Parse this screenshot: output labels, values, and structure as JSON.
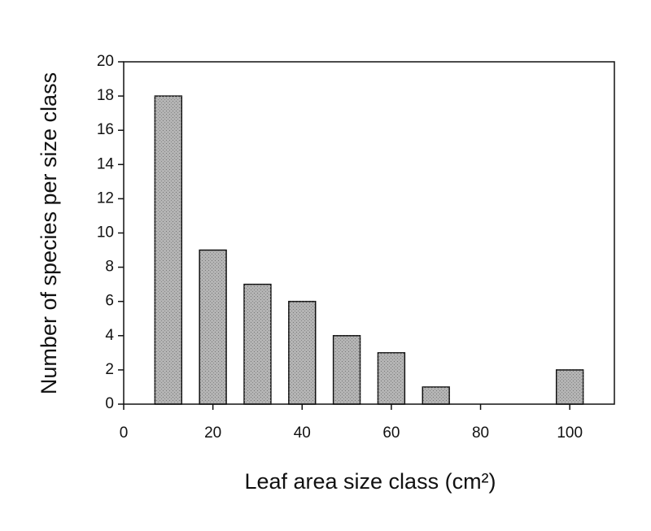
{
  "chart_data": {
    "type": "bar",
    "x_label": "Leaf area size class (cm²)",
    "y_label": "Number of species per size class",
    "x": [
      10,
      20,
      30,
      40,
      50,
      60,
      70,
      100
    ],
    "values": [
      18,
      9,
      7,
      6,
      4,
      3,
      1,
      2
    ],
    "color": "#b4b4b4",
    "xlim": [
      0,
      110
    ],
    "xticks": [
      0,
      20,
      40,
      60,
      80,
      100
    ],
    "ylim": [
      0,
      20
    ],
    "yticks": [
      0,
      2,
      4,
      6,
      8,
      10,
      12,
      14,
      16,
      18,
      20
    ],
    "grid": false
  }
}
